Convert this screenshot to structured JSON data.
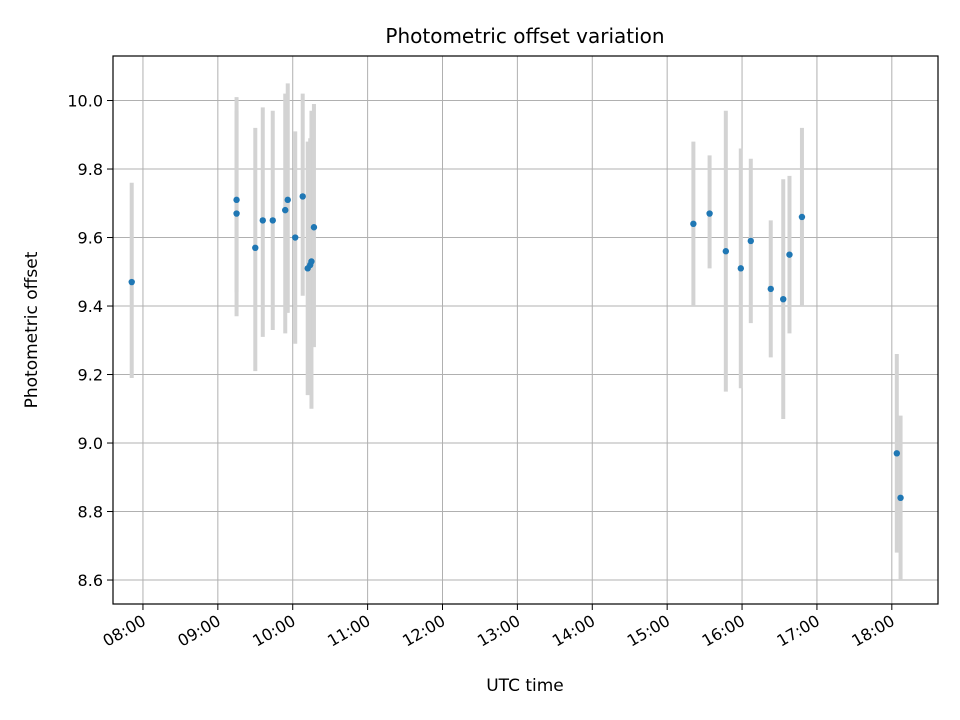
{
  "chart_data": {
    "type": "scatter",
    "title": "Photometric offset variation",
    "xlabel": "UTC time",
    "ylabel": "Photometric offset",
    "x_tick_labels": [
      "08:00",
      "09:00",
      "10:00",
      "11:00",
      "12:00",
      "13:00",
      "14:00",
      "15:00",
      "16:00",
      "17:00",
      "18:00"
    ],
    "y_tick_labels": [
      "8.6",
      "8.8",
      "9.0",
      "9.2",
      "9.4",
      "9.6",
      "9.8",
      "10.0"
    ],
    "xlim": [
      "07:36",
      "18:37"
    ],
    "ylim": [
      8.53,
      10.13
    ],
    "grid": true,
    "colors": {
      "marker": "#1f77b4",
      "errorbar": "#d3d3d3",
      "grid": "#b0b0b0"
    },
    "points": [
      {
        "x": "07:51",
        "y": 9.47,
        "yerr_low": 9.19,
        "yerr_high": 9.76
      },
      {
        "x": "09:15",
        "y": 9.71,
        "yerr_low": 9.44,
        "yerr_high": 9.97
      },
      {
        "x": "09:15",
        "y": 9.67,
        "yerr_low": 9.37,
        "yerr_high": 10.01
      },
      {
        "x": "09:30",
        "y": 9.57,
        "yerr_low": 9.21,
        "yerr_high": 9.92
      },
      {
        "x": "09:36",
        "y": 9.65,
        "yerr_low": 9.31,
        "yerr_high": 9.98
      },
      {
        "x": "09:44",
        "y": 9.65,
        "yerr_low": 9.33,
        "yerr_high": 9.97
      },
      {
        "x": "09:54",
        "y": 9.68,
        "yerr_low": 9.32,
        "yerr_high": 10.02
      },
      {
        "x": "09:56",
        "y": 9.71,
        "yerr_low": 9.38,
        "yerr_high": 10.05
      },
      {
        "x": "10:02",
        "y": 9.6,
        "yerr_low": 9.29,
        "yerr_high": 9.91
      },
      {
        "x": "10:08",
        "y": 9.72,
        "yerr_low": 9.43,
        "yerr_high": 10.02
      },
      {
        "x": "10:12",
        "y": 9.51,
        "yerr_low": 9.14,
        "yerr_high": 9.88
      },
      {
        "x": "10:14",
        "y": 9.52,
        "yerr_low": 9.15,
        "yerr_high": 9.89
      },
      {
        "x": "10:15",
        "y": 9.53,
        "yerr_low": 9.1,
        "yerr_high": 9.97
      },
      {
        "x": "10:17",
        "y": 9.63,
        "yerr_low": 9.28,
        "yerr_high": 9.99
      },
      {
        "x": "15:21",
        "y": 9.64,
        "yerr_low": 9.4,
        "yerr_high": 9.88
      },
      {
        "x": "15:34",
        "y": 9.67,
        "yerr_low": 9.51,
        "yerr_high": 9.84
      },
      {
        "x": "15:47",
        "y": 9.56,
        "yerr_low": 9.15,
        "yerr_high": 9.97
      },
      {
        "x": "15:59",
        "y": 9.51,
        "yerr_low": 9.16,
        "yerr_high": 9.86
      },
      {
        "x": "16:07",
        "y": 9.59,
        "yerr_low": 9.35,
        "yerr_high": 9.83
      },
      {
        "x": "16:23",
        "y": 9.45,
        "yerr_low": 9.25,
        "yerr_high": 9.65
      },
      {
        "x": "16:33",
        "y": 9.42,
        "yerr_low": 9.07,
        "yerr_high": 9.77
      },
      {
        "x": "16:38",
        "y": 9.55,
        "yerr_low": 9.32,
        "yerr_high": 9.78
      },
      {
        "x": "16:48",
        "y": 9.66,
        "yerr_low": 9.4,
        "yerr_high": 9.92
      },
      {
        "x": "18:04",
        "y": 8.97,
        "yerr_low": 8.68,
        "yerr_high": 9.26
      },
      {
        "x": "18:07",
        "y": 8.84,
        "yerr_low": 8.6,
        "yerr_high": 9.08
      }
    ]
  }
}
